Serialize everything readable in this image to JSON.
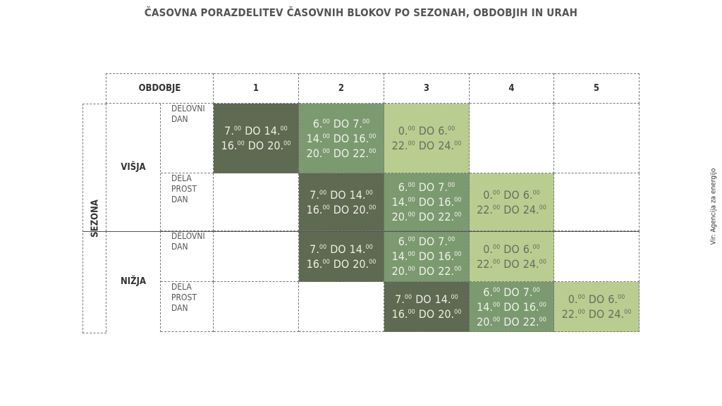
{
  "title": "ČASOVNA PORAZDELITEV ČASOVNIH BLOKOV PO SEZONAH, OBDOBJIH IN URAH",
  "header": {
    "label": "OBDOBJE",
    "periods": [
      "1",
      "2",
      "3",
      "4",
      "5"
    ]
  },
  "side_label": "SEZONA",
  "source": "Vir: Agencija za energijo",
  "seasons": [
    {
      "label": "VIŠJA",
      "rows": [
        {
          "day": [
            "DELOVNI",
            "DAN"
          ],
          "cells": [
            {
              "color": "#5e6a51",
              "text": "#ecece4",
              "lines": [
                {
                  "from": [
                    "7.",
                    "00"
                  ],
                  "word": "DO",
                  "to": [
                    "14.",
                    "00"
                  ]
                },
                {
                  "from": [
                    "16.",
                    "00"
                  ],
                  "word": "DO",
                  "to": [
                    "20.",
                    "00"
                  ]
                }
              ]
            },
            {
              "color": "#7c9a70",
              "text": "#eef0e8",
              "lines": [
                {
                  "from": [
                    "6.",
                    "00"
                  ],
                  "word": "DO",
                  "to": [
                    "7.",
                    "00"
                  ]
                },
                {
                  "from": [
                    "14.",
                    "00"
                  ],
                  "word": "DO",
                  "to": [
                    "16.",
                    "00"
                  ]
                },
                {
                  "from": [
                    "20.",
                    "00"
                  ],
                  "word": "DO",
                  "to": [
                    "22.",
                    "00"
                  ]
                }
              ]
            },
            {
              "color": "#b9cd90",
              "text": "#6a6d62",
              "lines": [
                {
                  "from": [
                    "0.",
                    "00"
                  ],
                  "word": "DO",
                  "to": [
                    "6.",
                    "00"
                  ]
                },
                {
                  "from": [
                    "22.",
                    "00"
                  ],
                  "word": "DO",
                  "to": [
                    "24.",
                    "00"
                  ]
                }
              ]
            },
            null,
            null
          ]
        },
        {
          "day": [
            "DELA",
            "PROST",
            "DAN"
          ],
          "cells": [
            null,
            {
              "color": "#5e6a51",
              "text": "#ecece4",
              "lines": [
                {
                  "from": [
                    "7.",
                    "00"
                  ],
                  "word": "DO",
                  "to": [
                    "14.",
                    "00"
                  ]
                },
                {
                  "from": [
                    "16.",
                    "00"
                  ],
                  "word": "DO",
                  "to": [
                    "20.",
                    "00"
                  ]
                }
              ]
            },
            {
              "color": "#7c9a70",
              "text": "#eef0e8",
              "lines": [
                {
                  "from": [
                    "6.",
                    "00"
                  ],
                  "word": "DO",
                  "to": [
                    "7.",
                    "00"
                  ]
                },
                {
                  "from": [
                    "14.",
                    "00"
                  ],
                  "word": "DO",
                  "to": [
                    "16.",
                    "00"
                  ]
                },
                {
                  "from": [
                    "20.",
                    "00"
                  ],
                  "word": "DO",
                  "to": [
                    "22.",
                    "00"
                  ]
                }
              ]
            },
            {
              "color": "#b9cd90",
              "text": "#6a6d62",
              "lines": [
                {
                  "from": [
                    "0.",
                    "00"
                  ],
                  "word": "DO",
                  "to": [
                    "6.",
                    "00"
                  ]
                },
                {
                  "from": [
                    "22.",
                    "00"
                  ],
                  "word": "DO",
                  "to": [
                    "24.",
                    "00"
                  ]
                }
              ]
            },
            null
          ]
        }
      ]
    },
    {
      "label": "NIŽJA",
      "rows": [
        {
          "day": [
            "DELOVNI",
            "DAN"
          ],
          "cells": [
            null,
            {
              "color": "#5e6a51",
              "text": "#ecece4",
              "lines": [
                {
                  "from": [
                    "7.",
                    "00"
                  ],
                  "word": "DO",
                  "to": [
                    "14.",
                    "00"
                  ]
                },
                {
                  "from": [
                    "16.",
                    "00"
                  ],
                  "word": "DO",
                  "to": [
                    "20.",
                    "00"
                  ]
                }
              ]
            },
            {
              "color": "#7c9a70",
              "text": "#eef0e8",
              "lines": [
                {
                  "from": [
                    "6.",
                    "00"
                  ],
                  "word": "DO",
                  "to": [
                    "7.",
                    "00"
                  ]
                },
                {
                  "from": [
                    "14.",
                    "00"
                  ],
                  "word": "DO",
                  "to": [
                    "16.",
                    "00"
                  ]
                },
                {
                  "from": [
                    "20.",
                    "00"
                  ],
                  "word": "DO",
                  "to": [
                    "22.",
                    "00"
                  ]
                }
              ]
            },
            {
              "color": "#b9cd90",
              "text": "#6a6d62",
              "lines": [
                {
                  "from": [
                    "0.",
                    "00"
                  ],
                  "word": "DO",
                  "to": [
                    "6.",
                    "00"
                  ]
                },
                {
                  "from": [
                    "22.",
                    "00"
                  ],
                  "word": "DO",
                  "to": [
                    "24.",
                    "00"
                  ]
                }
              ]
            },
            null
          ]
        },
        {
          "day": [
            "DELA",
            "PROST",
            "DAN"
          ],
          "cells": [
            null,
            null,
            {
              "color": "#5e6a51",
              "text": "#ecece4",
              "lines": [
                {
                  "from": [
                    "7.",
                    "00"
                  ],
                  "word": "DO",
                  "to": [
                    "14.",
                    "00"
                  ]
                },
                {
                  "from": [
                    "16.",
                    "00"
                  ],
                  "word": "DO",
                  "to": [
                    "20.",
                    "00"
                  ]
                }
              ]
            },
            {
              "color": "#7c9a70",
              "text": "#eef0e8",
              "lines": [
                {
                  "from": [
                    "6.",
                    "00"
                  ],
                  "word": "DO",
                  "to": [
                    "7.",
                    "00"
                  ]
                },
                {
                  "from": [
                    "14.",
                    "00"
                  ],
                  "word": "DO",
                  "to": [
                    "16.",
                    "00"
                  ]
                },
                {
                  "from": [
                    "20.",
                    "00"
                  ],
                  "word": "DO",
                  "to": [
                    "22.",
                    "00"
                  ]
                }
              ]
            },
            {
              "color": "#b9cd90",
              "text": "#6a6d62",
              "lines": [
                {
                  "from": [
                    "0.",
                    "00"
                  ],
                  "word": "DO",
                  "to": [
                    "6.",
                    "00"
                  ]
                },
                {
                  "from": [
                    "22.",
                    "00"
                  ],
                  "word": "DO",
                  "to": [
                    "24.",
                    "00"
                  ]
                }
              ]
            }
          ]
        }
      ]
    }
  ]
}
